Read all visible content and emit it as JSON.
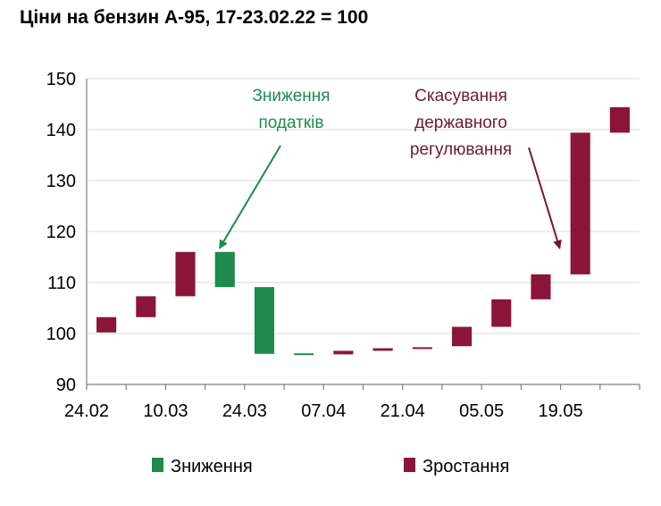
{
  "chart_data": {
    "type": "bar",
    "subtype": "floating-range",
    "title": "Ціни на бензин А-95, 17-23.02.22 = 100",
    "xlabel": "",
    "ylabel": "",
    "ylim": [
      90,
      150
    ],
    "yticks": [
      90,
      100,
      110,
      120,
      130,
      140,
      150
    ],
    "xtick_labels": [
      "24.02",
      "10.03",
      "24.03",
      "07.04",
      "21.04",
      "05.05",
      "19.05"
    ],
    "grid": true,
    "legend_position": "bottom",
    "series": [
      {
        "name": "Зниження",
        "color": "#1e8a4c"
      },
      {
        "name": "Зростання",
        "color": "#8b1538"
      }
    ],
    "bars": [
      {
        "low": 100.2,
        "high": 103.2,
        "series": "Зростання"
      },
      {
        "low": 103.2,
        "high": 107.3,
        "series": "Зростання"
      },
      {
        "low": 107.3,
        "high": 116.0,
        "series": "Зростання"
      },
      {
        "low": 109.1,
        "high": 116.0,
        "series": "Зниження"
      },
      {
        "low": 96.0,
        "high": 109.1,
        "series": "Зниження"
      },
      {
        "low": 95.9,
        "high": 96.1,
        "series": "Зниження"
      },
      {
        "low": 95.9,
        "high": 96.6,
        "series": "Зростання"
      },
      {
        "low": 96.6,
        "high": 97.1,
        "series": "Зростання"
      },
      {
        "low": 97.0,
        "high": 97.3,
        "series": "Зростання"
      },
      {
        "low": 97.5,
        "high": 101.3,
        "series": "Зростання"
      },
      {
        "low": 101.3,
        "high": 106.7,
        "series": "Зростання"
      },
      {
        "low": 106.7,
        "high": 111.6,
        "series": "Зростання"
      },
      {
        "low": 111.6,
        "high": 139.4,
        "series": "Зростання"
      },
      {
        "low": 139.4,
        "high": 144.4,
        "series": "Зростання"
      }
    ],
    "annotations": [
      {
        "lines": [
          "Зниження",
          "податків"
        ],
        "color": "#1e8a4c",
        "target_bar": 3
      },
      {
        "lines": [
          "Скасування",
          "державного",
          "регулювання"
        ],
        "color": "#6e1838",
        "target_bar": 12
      }
    ]
  }
}
